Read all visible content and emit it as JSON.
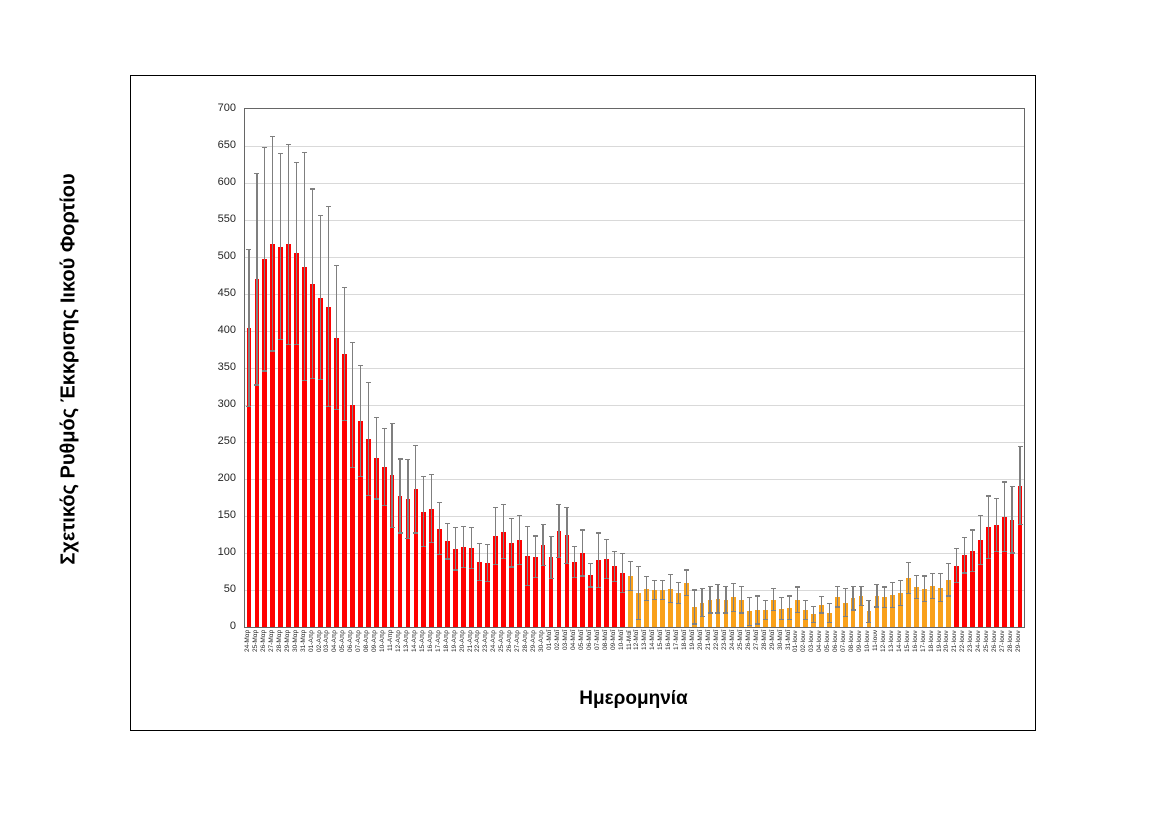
{
  "chart_data": {
    "type": "bar",
    "title": "",
    "xlabel": "Ημερομηνία",
    "ylabel": "Σχετικός Ρυθμός Έκκρισης Ιικού Φορτίου",
    "ylim": [
      0,
      700
    ],
    "y_ticks": [
      0,
      50,
      100,
      150,
      200,
      250,
      300,
      350,
      400,
      450,
      500,
      550,
      600,
      650,
      700
    ],
    "grid": "horizontal",
    "legend": "none",
    "error_bars": "symmetric",
    "bar_color_default": "#FF0000",
    "bar_color_highlight": "#F9A11B",
    "highlight_range_index": [
      48,
      88
    ],
    "highlight_range_labels": [
      "11-Μαΐ",
      "20-Ιουν"
    ],
    "error_bar_color": "#7F7F7F",
    "categories": [
      "24-Μαρ",
      "25-Μαρ",
      "26-Μαρ",
      "27-Μαρ",
      "28-Μαρ",
      "29-Μαρ",
      "30-Μαρ",
      "31-Μαρ",
      "01-Απρ",
      "02-Απρ",
      "03-Απρ",
      "04-Απρ",
      "05-Απρ",
      "06-Απρ",
      "07-Απρ",
      "08-Απρ",
      "09-Απρ",
      "10-Απρ",
      "11-Απρ",
      "12-Απρ",
      "13-Απρ",
      "14-Απρ",
      "15-Απρ",
      "16-Απρ",
      "17-Απρ",
      "18-Απρ",
      "19-Απρ",
      "20-Απρ",
      "21-Απρ",
      "22-Απρ",
      "23-Απρ",
      "24-Απρ",
      "25-Απρ",
      "26-Απρ",
      "27-Απρ",
      "28-Απρ",
      "29-Απρ",
      "30-Απρ",
      "01-Μαΐ",
      "02-Μαΐ",
      "03-Μαΐ",
      "04-Μαΐ",
      "05-Μαΐ",
      "06-Μαΐ",
      "07-Μαΐ",
      "08-Μαΐ",
      "09-Μαΐ",
      "10-Μαΐ",
      "11-Μαΐ",
      "12-Μαΐ",
      "13-Μαΐ",
      "14-Μαΐ",
      "15-Μαΐ",
      "16-Μαΐ",
      "17-Μαΐ",
      "18-Μαΐ",
      "19-Μαΐ",
      "20-Μαΐ",
      "21-Μαΐ",
      "22-Μαΐ",
      "23-Μαΐ",
      "24-Μαΐ",
      "25-Μαΐ",
      "26-Μαΐ",
      "27-Μαΐ",
      "28-Μαΐ",
      "29-Μαΐ",
      "30-Μαΐ",
      "31-Μαΐ",
      "01-Ιουν",
      "02-Ιουν",
      "03-Ιουν",
      "04-Ιουν",
      "05-Ιουν",
      "06-Ιουν",
      "07-Ιουν",
      "08-Ιουν",
      "09-Ιουν",
      "10-Ιουν",
      "11-Ιουν",
      "12-Ιουν",
      "13-Ιουν",
      "14-Ιουν",
      "15-Ιουν",
      "16-Ιουν",
      "17-Ιουν",
      "18-Ιουν",
      "19-Ιουν",
      "20-Ιουν",
      "21-Ιουν",
      "22-Ιουν",
      "23-Ιουν",
      "24-Ιουν",
      "25-Ιουν",
      "26-Ιουν",
      "27-Ιουν",
      "28-Ιουν",
      "29-Ιουν"
    ],
    "values": [
      404,
      470,
      497,
      518,
      514,
      517,
      505,
      487,
      464,
      445,
      433,
      391,
      369,
      300,
      278,
      254,
      228,
      216,
      205,
      177,
      173,
      186,
      156,
      160,
      133,
      116,
      106,
      108,
      107,
      88,
      87,
      123,
      129,
      114,
      118,
      96,
      95,
      111,
      94,
      130,
      124,
      88,
      100,
      70,
      90,
      92,
      82,
      73,
      69,
      46,
      52,
      50,
      50,
      52,
      46,
      60,
      27,
      33,
      37,
      38,
      37,
      40,
      37,
      21,
      23,
      23,
      37,
      25,
      26,
      37,
      23,
      17,
      30,
      19,
      41,
      33,
      39,
      42,
      21,
      42,
      40,
      43,
      46,
      66,
      54,
      52,
      55,
      53,
      64,
      83,
      97,
      103,
      118,
      135,
      138,
      149,
      145,
      191
    ],
    "errors": [
      106,
      143,
      151,
      145,
      126,
      135,
      123,
      154,
      128,
      111,
      135,
      97,
      90,
      85,
      75,
      76,
      55,
      52,
      70,
      50,
      53,
      59,
      47,
      46,
      35,
      24,
      29,
      28,
      28,
      25,
      25,
      39,
      36,
      33,
      33,
      40,
      28,
      28,
      28,
      36,
      38,
      21,
      31,
      16,
      37,
      26,
      20,
      26,
      20,
      36,
      16,
      13,
      13,
      19,
      14,
      17,
      23,
      19,
      18,
      19,
      18,
      19,
      18,
      19,
      19,
      13,
      15,
      15,
      16,
      17,
      13,
      11,
      11,
      13,
      14,
      19,
      16,
      13,
      15,
      15,
      14,
      17,
      17,
      21,
      16,
      17,
      17,
      19,
      22,
      23,
      24,
      28,
      33,
      42,
      36,
      47,
      45,
      53
    ]
  }
}
